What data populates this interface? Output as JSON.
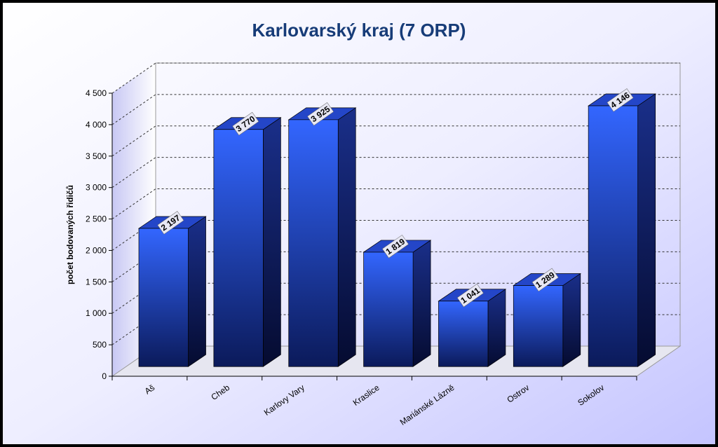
{
  "chart_data": {
    "type": "bar",
    "title": "Karlovarský kraj (7 ORP)",
    "y_label": "počet bodovaných řidičů",
    "categories": [
      "Aš",
      "Cheb",
      "Karlovy Vary",
      "Kraslice",
      "Mariánské Lázně",
      "Ostrov",
      "Sokolov"
    ],
    "values": [
      2197,
      3770,
      3925,
      1819,
      1041,
      1289,
      4146
    ],
    "value_labels": [
      "2 197",
      "3 770",
      "3 925",
      "1 819",
      "1 041",
      "1 289",
      "4 146"
    ],
    "color": "#2f5bf0",
    "ylim": [
      0,
      4500
    ],
    "yticks": [
      0,
      500,
      {
        "value": 1000,
        "label": "1 000"
      },
      {
        "value": 1500,
        "label": "1 500"
      },
      {
        "value": 2000,
        "label": "2 000"
      },
      {
        "value": 2500,
        "label": "2 500"
      },
      {
        "value": 3000,
        "label": "3 000"
      },
      {
        "value": 3500,
        "label": "3 500"
      },
      {
        "value": 4000,
        "label": "4 000"
      },
      {
        "value": 4500,
        "label": "4 500"
      }
    ],
    "grid": true
  }
}
